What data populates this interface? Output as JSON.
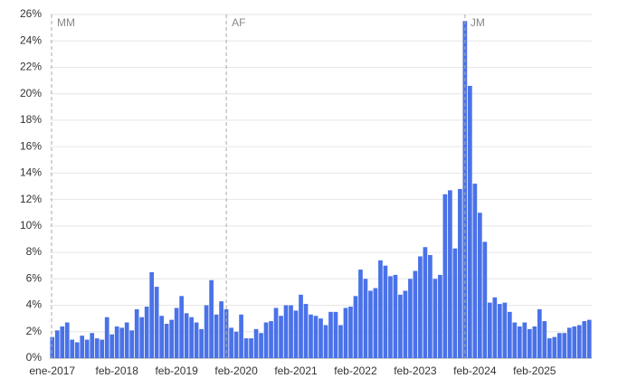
{
  "chart_data": {
    "type": "bar",
    "color": "#4a72e8",
    "grid": true,
    "categories": [
      "ene-2017",
      null,
      null,
      null,
      null,
      null,
      null,
      null,
      null,
      null,
      null,
      null,
      null,
      "feb-2018",
      null,
      null,
      null,
      null,
      null,
      null,
      null,
      null,
      null,
      null,
      null,
      "feb-2019",
      null,
      null,
      null,
      null,
      null,
      null,
      null,
      null,
      null,
      null,
      null,
      "feb-2020",
      null,
      null,
      null,
      null,
      null,
      null,
      null,
      null,
      null,
      null,
      null,
      "feb-2021",
      null,
      null,
      null,
      null,
      null,
      null,
      null,
      null,
      null,
      null,
      null,
      "feb-2022",
      null,
      null,
      null,
      null,
      null,
      null,
      null,
      null,
      null,
      null,
      null,
      "feb-2023",
      null,
      null,
      null,
      null,
      null,
      null,
      null,
      null,
      null,
      null,
      null,
      "feb-2024",
      null,
      null,
      null,
      null,
      null,
      null,
      null,
      null,
      null,
      null,
      null,
      "feb-2025",
      null,
      null,
      null,
      null,
      null,
      null,
      null,
      null,
      null,
      null,
      null
    ],
    "values": [
      1.6,
      2.1,
      2.4,
      2.7,
      1.4,
      1.2,
      1.7,
      1.4,
      1.9,
      1.5,
      1.4,
      3.1,
      1.8,
      2.4,
      2.3,
      2.7,
      2.1,
      3.7,
      3.1,
      3.9,
      6.5,
      5.4,
      3.2,
      2.6,
      2.9,
      3.8,
      4.7,
      3.4,
      3.1,
      2.7,
      2.2,
      4.0,
      5.9,
      3.3,
      4.3,
      3.7,
      2.3,
      2.0,
      3.3,
      1.5,
      1.5,
      2.2,
      1.9,
      2.7,
      2.8,
      3.8,
      3.2,
      4.0,
      4.0,
      3.6,
      4.8,
      4.1,
      3.3,
      3.2,
      3.0,
      2.5,
      3.5,
      3.5,
      2.5,
      3.8,
      3.9,
      4.7,
      6.7,
      6.0,
      5.1,
      5.3,
      7.4,
      7.0,
      6.2,
      6.3,
      4.8,
      5.1,
      6.0,
      6.6,
      7.7,
      8.4,
      7.8,
      6.0,
      6.3,
      12.4,
      12.7,
      8.3,
      12.8,
      25.5,
      20.6,
      13.2,
      11.0,
      8.8,
      4.2,
      4.6,
      4.1,
      4.2,
      3.5,
      2.7,
      2.4,
      2.7,
      2.2,
      2.4,
      3.7,
      2.8,
      1.5,
      1.6,
      1.9,
      1.9,
      2.3,
      2.4,
      2.5,
      2.8,
      2.9
    ],
    "ylim": [
      0,
      26
    ],
    "yticks": [
      {
        "value": 0,
        "label": "0%"
      },
      {
        "value": 2,
        "label": "2%"
      },
      {
        "value": 4,
        "label": "4%"
      },
      {
        "value": 6,
        "label": "6%"
      },
      {
        "value": 8,
        "label": "8%"
      },
      {
        "value": 10,
        "label": "10%"
      },
      {
        "value": 12,
        "label": "12%"
      },
      {
        "value": 14,
        "label": "14%"
      },
      {
        "value": 16,
        "label": "16%"
      },
      {
        "value": 18,
        "label": "18%"
      },
      {
        "value": 20,
        "label": "20%"
      },
      {
        "value": 22,
        "label": "22%"
      },
      {
        "value": 24,
        "label": "24%"
      },
      {
        "value": 26,
        "label": "26%"
      }
    ],
    "annotations": [
      {
        "label": "MM",
        "at": 0
      },
      {
        "label": "AF",
        "at": 35
      },
      {
        "label": "JM",
        "at": 83
      }
    ]
  }
}
